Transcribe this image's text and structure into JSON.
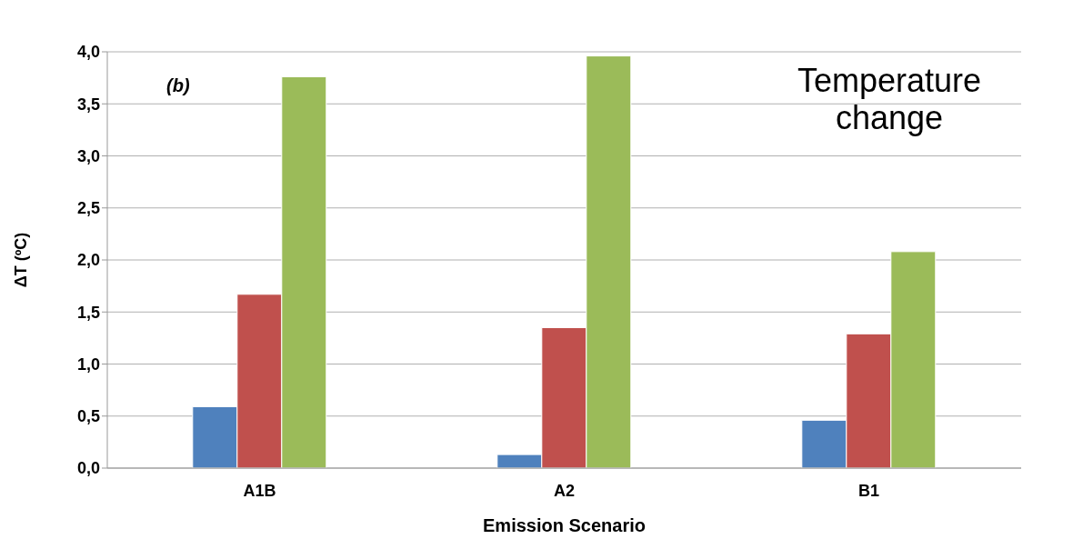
{
  "chart_data": {
    "type": "bar",
    "xlabel": "Emission Scenario",
    "ylabel": "ΔT (ºC)",
    "categories": [
      "A1B",
      "A2",
      "B1"
    ],
    "series": [
      {
        "color": "#4f81bd",
        "values": [
          0.59,
          0.13,
          0.46
        ]
      },
      {
        "color": "#c0504d",
        "values": [
          1.67,
          1.35,
          1.29
        ]
      },
      {
        "color": "#9bbb59",
        "values": [
          3.76,
          3.96,
          2.08
        ]
      }
    ],
    "ylim": [
      0,
      4
    ],
    "yticks": [
      {
        "value": 0,
        "label": "0,0"
      },
      {
        "value": 0.5,
        "label": "0,5"
      },
      {
        "value": 1,
        "label": "1,0"
      },
      {
        "value": 1.5,
        "label": "1,5"
      },
      {
        "value": 2,
        "label": "2,0"
      },
      {
        "value": 2.5,
        "label": "2,5"
      },
      {
        "value": 3,
        "label": "3,0"
      },
      {
        "value": 3.5,
        "label": "3,5"
      },
      {
        "value": 4,
        "label": "4,0"
      }
    ],
    "grid": "y",
    "legend": false,
    "annotations": [
      "(b)",
      "Temperature change"
    ]
  }
}
